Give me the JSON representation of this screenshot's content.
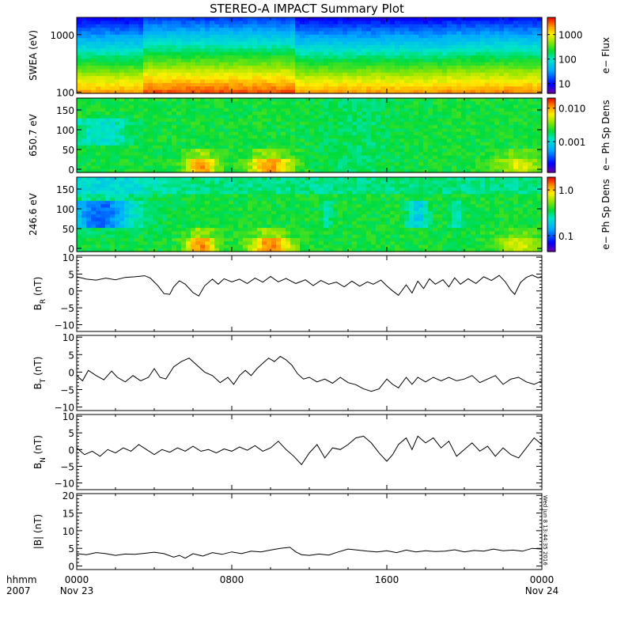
{
  "title": "STEREO-A IMPACT Summary Plot",
  "stamp": "Wed Jun  8 13:44:35 2016",
  "x_axis": {
    "row1_prefix": "hhmm",
    "row2_prefix": "2007",
    "ticks": [
      {
        "hours": 0,
        "label": "0000",
        "sub": "Nov 23"
      },
      {
        "hours": 8,
        "label": "0800",
        "sub": ""
      },
      {
        "hours": 16,
        "label": "1600",
        "sub": ""
      },
      {
        "hours": 24,
        "label": "0000",
        "sub": "Nov 24"
      }
    ]
  },
  "chart_data": [
    {
      "type": "heatmap",
      "id": "swea",
      "ylabel": "SWEA (eV)",
      "ylog": true,
      "ylim": [
        95,
        2000
      ],
      "yticks": [
        {
          "v": 100,
          "label": "100"
        },
        {
          "v": 1000,
          "label": "1000"
        }
      ],
      "colorbar": {
        "label": "e− Flux",
        "log": true,
        "range": [
          4,
          5000
        ],
        "ticks": [
          {
            "v": 10,
            "label": "10"
          },
          {
            "v": 100,
            "label": "100"
          },
          {
            "v": 1000,
            "label": "1000"
          }
        ]
      },
      "xlim_hours": [
        0,
        24
      ],
      "description_bands": "energy flux decreasing with energy; higher fluxes 0400-1100"
    },
    {
      "type": "heatmap",
      "id": "pad650",
      "ylabel": "650.7 eV",
      "ylog": false,
      "ylim": [
        -8,
        180
      ],
      "yticks": [
        {
          "v": 0,
          "label": "0"
        },
        {
          "v": 50,
          "label": "50"
        },
        {
          "v": 100,
          "label": "100"
        },
        {
          "v": 150,
          "label": "150"
        }
      ],
      "colorbar": {
        "label": "e− Ph Sp Dens",
        "log": true,
        "range": [
          0.00012,
          0.02
        ],
        "ticks": [
          {
            "v": 0.001,
            "label": "0.001"
          },
          {
            "v": 0.01,
            "label": "0.010"
          }
        ]
      },
      "xlim_hours": [
        0,
        24
      ]
    },
    {
      "type": "heatmap",
      "id": "pad246",
      "ylabel": "246.6 eV",
      "ylog": false,
      "ylim": [
        -8,
        180
      ],
      "yticks": [
        {
          "v": 0,
          "label": "0"
        },
        {
          "v": 50,
          "label": "50"
        },
        {
          "v": 100,
          "label": "100"
        },
        {
          "v": 150,
          "label": "150"
        }
      ],
      "colorbar": {
        "label": "e− Ph Sp Dens",
        "log": true,
        "range": [
          0.045,
          1.9
        ],
        "ticks": [
          {
            "v": 0.1,
            "label": "0.1"
          },
          {
            "v": 1.0,
            "label": "1.0"
          }
        ]
      },
      "xlim_hours": [
        0,
        24
      ]
    },
    {
      "type": "line",
      "id": "br",
      "ylabel_main": "B",
      "ylabel_sub": "R",
      "ylabel_unit": " (nT)",
      "ylim": [
        -12,
        10.5
      ],
      "yticks": [
        {
          "v": -10,
          "label": "−10"
        },
        {
          "v": -5,
          "label": "−5"
        },
        {
          "v": 0,
          "label": "0"
        },
        {
          "v": 5,
          "label": "5"
        },
        {
          "v": 10,
          "label": "10"
        }
      ],
      "xlim_hours": [
        0,
        24
      ],
      "points": [
        [
          0,
          4.2
        ],
        [
          0.5,
          3.5
        ],
        [
          1,
          3.2
        ],
        [
          1.5,
          3.8
        ],
        [
          2,
          3.3
        ],
        [
          2.5,
          4.0
        ],
        [
          3,
          4.2
        ],
        [
          3.5,
          4.5
        ],
        [
          3.8,
          3.8
        ],
        [
          4.2,
          1.5
        ],
        [
          4.5,
          -0.8
        ],
        [
          4.8,
          -1.0
        ],
        [
          5.0,
          1.2
        ],
        [
          5.3,
          3.0
        ],
        [
          5.6,
          2.0
        ],
        [
          6.0,
          -0.5
        ],
        [
          6.3,
          -1.5
        ],
        [
          6.6,
          1.5
        ],
        [
          7.0,
          3.5
        ],
        [
          7.3,
          2.0
        ],
        [
          7.6,
          3.6
        ],
        [
          8.0,
          2.7
        ],
        [
          8.4,
          3.5
        ],
        [
          8.8,
          2.2
        ],
        [
          9.2,
          3.8
        ],
        [
          9.6,
          2.6
        ],
        [
          10.0,
          4.3
        ],
        [
          10.4,
          2.7
        ],
        [
          10.8,
          3.7
        ],
        [
          11.3,
          2.2
        ],
        [
          11.8,
          3.3
        ],
        [
          12.2,
          1.6
        ],
        [
          12.6,
          3.1
        ],
        [
          13.0,
          2.0
        ],
        [
          13.4,
          2.6
        ],
        [
          13.8,
          1.2
        ],
        [
          14.2,
          2.9
        ],
        [
          14.6,
          1.4
        ],
        [
          15.0,
          2.7
        ],
        [
          15.3,
          2.0
        ],
        [
          15.7,
          3.2
        ],
        [
          16.0,
          1.5
        ],
        [
          16.3,
          0.0
        ],
        [
          16.6,
          -1.3
        ],
        [
          17.0,
          1.8
        ],
        [
          17.3,
          -0.6
        ],
        [
          17.6,
          2.9
        ],
        [
          17.9,
          0.7
        ],
        [
          18.2,
          3.6
        ],
        [
          18.5,
          2.0
        ],
        [
          18.9,
          3.3
        ],
        [
          19.2,
          1.2
        ],
        [
          19.5,
          3.9
        ],
        [
          19.8,
          2.0
        ],
        [
          20.2,
          3.6
        ],
        [
          20.6,
          2.2
        ],
        [
          21.0,
          4.2
        ],
        [
          21.4,
          3.1
        ],
        [
          21.8,
          4.6
        ],
        [
          22.1,
          2.8
        ],
        [
          22.4,
          0.2
        ],
        [
          22.6,
          -1.0
        ],
        [
          22.9,
          2.5
        ],
        [
          23.2,
          4.0
        ],
        [
          23.5,
          4.7
        ],
        [
          23.8,
          3.9
        ],
        [
          24,
          4.3
        ]
      ]
    },
    {
      "type": "line",
      "id": "bt",
      "ylabel_main": "B",
      "ylabel_sub": "T",
      "ylabel_unit": " (nT)",
      "ylim": [
        -11,
        10.5
      ],
      "yticks": [
        {
          "v": -10,
          "label": "−10"
        },
        {
          "v": -5,
          "label": "−5"
        },
        {
          "v": 0,
          "label": "0"
        },
        {
          "v": 5,
          "label": "5"
        },
        {
          "v": 10,
          "label": "10"
        }
      ],
      "xlim_hours": [
        0,
        24
      ],
      "points": [
        [
          0,
          -1.0
        ],
        [
          0.3,
          -2.5
        ],
        [
          0.6,
          0.5
        ],
        [
          1.0,
          -1.0
        ],
        [
          1.4,
          -2.2
        ],
        [
          1.8,
          0.3
        ],
        [
          2.1,
          -1.5
        ],
        [
          2.5,
          -2.8
        ],
        [
          2.9,
          -1.0
        ],
        [
          3.3,
          -2.5
        ],
        [
          3.7,
          -1.5
        ],
        [
          4.0,
          1.0
        ],
        [
          4.3,
          -1.5
        ],
        [
          4.6,
          -2.0
        ],
        [
          5.0,
          1.5
        ],
        [
          5.4,
          3.0
        ],
        [
          5.8,
          4.0
        ],
        [
          6.2,
          2.0
        ],
        [
          6.6,
          0.0
        ],
        [
          7.0,
          -1.0
        ],
        [
          7.4,
          -3.0
        ],
        [
          7.8,
          -1.5
        ],
        [
          8.1,
          -3.5
        ],
        [
          8.4,
          -1.0
        ],
        [
          8.7,
          0.5
        ],
        [
          9.0,
          -1.0
        ],
        [
          9.3,
          1.0
        ],
        [
          9.6,
          2.5
        ],
        [
          9.9,
          4.0
        ],
        [
          10.2,
          3.0
        ],
        [
          10.5,
          4.5
        ],
        [
          10.8,
          3.5
        ],
        [
          11.1,
          2.0
        ],
        [
          11.4,
          -0.5
        ],
        [
          11.7,
          -2.0
        ],
        [
          12.0,
          -1.5
        ],
        [
          12.4,
          -2.8
        ],
        [
          12.8,
          -2.0
        ],
        [
          13.2,
          -3.2
        ],
        [
          13.6,
          -1.5
        ],
        [
          14.0,
          -3.0
        ],
        [
          14.4,
          -3.6
        ],
        [
          14.8,
          -4.8
        ],
        [
          15.2,
          -5.5
        ],
        [
          15.6,
          -4.8
        ],
        [
          16.0,
          -2.0
        ],
        [
          16.3,
          -3.5
        ],
        [
          16.6,
          -4.5
        ],
        [
          17.0,
          -1.5
        ],
        [
          17.3,
          -3.5
        ],
        [
          17.6,
          -1.5
        ],
        [
          18.0,
          -2.8
        ],
        [
          18.4,
          -1.5
        ],
        [
          18.8,
          -2.5
        ],
        [
          19.2,
          -1.5
        ],
        [
          19.6,
          -2.5
        ],
        [
          20.0,
          -2.0
        ],
        [
          20.4,
          -1.0
        ],
        [
          20.8,
          -3.0
        ],
        [
          21.2,
          -2.0
        ],
        [
          21.6,
          -1.0
        ],
        [
          22.0,
          -3.5
        ],
        [
          22.4,
          -2.0
        ],
        [
          22.8,
          -1.5
        ],
        [
          23.2,
          -2.8
        ],
        [
          23.6,
          -3.5
        ],
        [
          24,
          -2.5
        ]
      ]
    },
    {
      "type": "line",
      "id": "bn",
      "ylabel_main": "B",
      "ylabel_sub": "N",
      "ylabel_unit": " (nT)",
      "ylim": [
        -12,
        10.5
      ],
      "yticks": [
        {
          "v": -10,
          "label": "−10"
        },
        {
          "v": -5,
          "label": "−5"
        },
        {
          "v": 0,
          "label": "0"
        },
        {
          "v": 5,
          "label": "5"
        },
        {
          "v": 10,
          "label": "10"
        }
      ],
      "xlim_hours": [
        0,
        24
      ],
      "points": [
        [
          0,
          0.5
        ],
        [
          0.4,
          -1.5
        ],
        [
          0.8,
          -0.5
        ],
        [
          1.2,
          -2.0
        ],
        [
          1.6,
          0.0
        ],
        [
          2.0,
          -1.0
        ],
        [
          2.4,
          0.5
        ],
        [
          2.8,
          -0.5
        ],
        [
          3.2,
          1.5
        ],
        [
          3.6,
          0.0
        ],
        [
          4.0,
          -1.5
        ],
        [
          4.4,
          0.0
        ],
        [
          4.8,
          -0.8
        ],
        [
          5.2,
          0.5
        ],
        [
          5.6,
          -0.5
        ],
        [
          6.0,
          1.0
        ],
        [
          6.4,
          -0.5
        ],
        [
          6.8,
          0.0
        ],
        [
          7.2,
          -1.0
        ],
        [
          7.6,
          0.2
        ],
        [
          8.0,
          -0.5
        ],
        [
          8.4,
          0.8
        ],
        [
          8.8,
          -0.2
        ],
        [
          9.2,
          1.2
        ],
        [
          9.6,
          -0.5
        ],
        [
          10.0,
          0.5
        ],
        [
          10.4,
          2.5
        ],
        [
          10.8,
          0.0
        ],
        [
          11.2,
          -2.0
        ],
        [
          11.6,
          -4.5
        ],
        [
          12.0,
          -1.0
        ],
        [
          12.4,
          1.5
        ],
        [
          12.8,
          -2.5
        ],
        [
          13.2,
          0.5
        ],
        [
          13.6,
          0.0
        ],
        [
          14.0,
          1.5
        ],
        [
          14.4,
          3.5
        ],
        [
          14.8,
          4.0
        ],
        [
          15.2,
          2.0
        ],
        [
          15.6,
          -1.0
        ],
        [
          16.0,
          -3.5
        ],
        [
          16.3,
          -1.5
        ],
        [
          16.6,
          1.5
        ],
        [
          17.0,
          3.5
        ],
        [
          17.3,
          0.0
        ],
        [
          17.6,
          4.0
        ],
        [
          18.0,
          2.0
        ],
        [
          18.4,
          3.5
        ],
        [
          18.8,
          0.5
        ],
        [
          19.2,
          2.5
        ],
        [
          19.6,
          -2.0
        ],
        [
          20.0,
          0.0
        ],
        [
          20.4,
          2.0
        ],
        [
          20.8,
          -0.5
        ],
        [
          21.2,
          1.0
        ],
        [
          21.6,
          -2.0
        ],
        [
          22.0,
          0.5
        ],
        [
          22.4,
          -1.5
        ],
        [
          22.8,
          -2.5
        ],
        [
          23.2,
          0.5
        ],
        [
          23.6,
          3.5
        ],
        [
          24,
          1.5
        ]
      ]
    },
    {
      "type": "line",
      "id": "bmag",
      "ylabel_main": "|B|",
      "ylabel_sub": "",
      "ylabel_unit": " (nT)",
      "ylim": [
        -1,
        20.5
      ],
      "yticks": [
        {
          "v": 0,
          "label": "0"
        },
        {
          "v": 5,
          "label": "5"
        },
        {
          "v": 10,
          "label": "10"
        },
        {
          "v": 15,
          "label": "15"
        },
        {
          "v": 20,
          "label": "20"
        }
      ],
      "xlim_hours": [
        0,
        24
      ],
      "points": [
        [
          0,
          3.5
        ],
        [
          0.5,
          3.2
        ],
        [
          1,
          3.8
        ],
        [
          1.5,
          3.5
        ],
        [
          2,
          3.0
        ],
        [
          2.5,
          3.4
        ],
        [
          3,
          3.3
        ],
        [
          3.5,
          3.6
        ],
        [
          4,
          3.9
        ],
        [
          4.5,
          3.5
        ],
        [
          5,
          2.5
        ],
        [
          5.3,
          3.0
        ],
        [
          5.6,
          2.2
        ],
        [
          6,
          3.5
        ],
        [
          6.5,
          2.8
        ],
        [
          7,
          3.8
        ],
        [
          7.5,
          3.3
        ],
        [
          8,
          4.0
        ],
        [
          8.5,
          3.5
        ],
        [
          9,
          4.2
        ],
        [
          9.5,
          4.0
        ],
        [
          10,
          4.5
        ],
        [
          10.5,
          5.0
        ],
        [
          11,
          5.3
        ],
        [
          11.3,
          4.0
        ],
        [
          11.6,
          3.2
        ],
        [
          12,
          3.0
        ],
        [
          12.5,
          3.4
        ],
        [
          13,
          3.1
        ],
        [
          13.5,
          4.0
        ],
        [
          14,
          4.8
        ],
        [
          14.5,
          4.5
        ],
        [
          15,
          4.2
        ],
        [
          15.5,
          4.0
        ],
        [
          16,
          4.3
        ],
        [
          16.5,
          3.8
        ],
        [
          17,
          4.5
        ],
        [
          17.5,
          4.0
        ],
        [
          18,
          4.3
        ],
        [
          18.5,
          4.1
        ],
        [
          19,
          4.2
        ],
        [
          19.5,
          4.6
        ],
        [
          20,
          4.0
        ],
        [
          20.5,
          4.4
        ],
        [
          21,
          4.2
        ],
        [
          21.5,
          4.8
        ],
        [
          22,
          4.3
        ],
        [
          22.5,
          4.5
        ],
        [
          23,
          4.2
        ],
        [
          23.5,
          5.0
        ],
        [
          24,
          4.8
        ]
      ]
    }
  ]
}
